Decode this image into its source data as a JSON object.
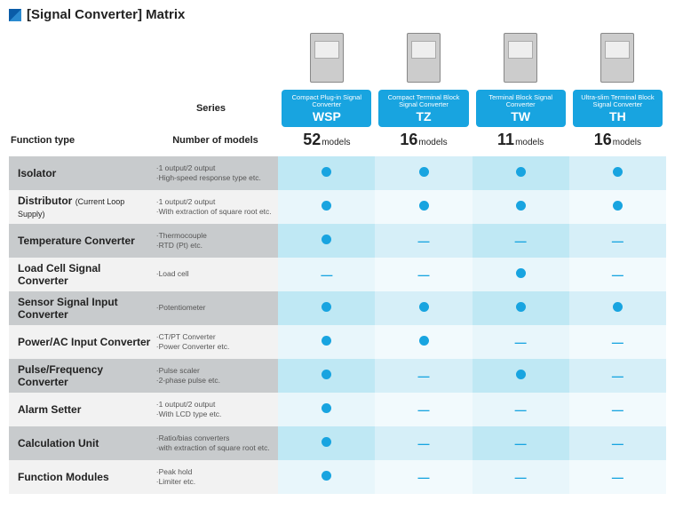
{
  "colors": {
    "accent": "#18a4e0",
    "dot": "#18a4e0",
    "dash": "#18a4e0",
    "band_even": "#c8cbcd",
    "band_odd": "#f2f2f2",
    "colA_even": "#bfe8f4",
    "colA_odd": "#e8f6fb",
    "colB_even": "#d6eff8",
    "colB_odd": "#f2fafd"
  },
  "title": "[Signal Converter] Matrix",
  "labels": {
    "series": "Series",
    "function_type": "Function type",
    "number_of_models": "Number of models",
    "models_suffix": "models"
  },
  "products": [
    {
      "caption": "Compact Plug-in Signal Converter",
      "code": "WSP",
      "count": "52"
    },
    {
      "caption": "Compact Terminal Block Signal Converter",
      "code": "TZ",
      "count": "16"
    },
    {
      "caption": "Terminal Block Signal Converter",
      "code": "TW",
      "count": "11"
    },
    {
      "caption": "Ultra-slim Terminal Block Signal Converter",
      "code": "TH",
      "count": "16"
    }
  ],
  "rows": [
    {
      "name": "Isolator",
      "sub": "",
      "desc": "·1 output/2 output\n·High-speed response type etc.",
      "cells": [
        "dot",
        "dot",
        "dot",
        "dot"
      ]
    },
    {
      "name": "Distributor",
      "sub": "(Current Loop Supply)",
      "desc": "·1 output/2 output\n·With extraction of square root etc.",
      "cells": [
        "dot",
        "dot",
        "dot",
        "dot"
      ]
    },
    {
      "name": "Temperature Converter",
      "sub": "",
      "desc": "·Thermocouple\n·RTD (Pt) etc.",
      "cells": [
        "dot",
        "dash",
        "dash",
        "dash"
      ]
    },
    {
      "name": "Load Cell Signal Converter",
      "sub": "",
      "desc": "·Load cell",
      "cells": [
        "dash",
        "dash",
        "dot",
        "dash"
      ]
    },
    {
      "name": "Sensor Signal Input Converter",
      "sub": "",
      "desc": "·Potentiometer",
      "cells": [
        "dot",
        "dot",
        "dot",
        "dot"
      ]
    },
    {
      "name": "Power/AC Input Converter",
      "sub": "",
      "desc": "·CT/PT Converter\n·Power Converter etc.",
      "cells": [
        "dot",
        "dot",
        "dash",
        "dash"
      ]
    },
    {
      "name": "Pulse/Frequency Converter",
      "sub": "",
      "desc": "·Pulse scaler\n·2-phase pulse etc.",
      "cells": [
        "dot",
        "dash",
        "dot",
        "dash"
      ]
    },
    {
      "name": "Alarm Setter",
      "sub": "",
      "desc": "·1 output/2 output\n·With LCD type etc.",
      "cells": [
        "dot",
        "dash",
        "dash",
        "dash"
      ]
    },
    {
      "name": "Calculation Unit",
      "sub": "",
      "desc": "·Ratio/bias converters\n·with extraction of square root    etc.",
      "cells": [
        "dot",
        "dash",
        "dash",
        "dash"
      ]
    },
    {
      "name": "Function Modules",
      "sub": "",
      "desc": "·Peak hold\n·Limiter etc.",
      "cells": [
        "dot",
        "dash",
        "dash",
        "dash"
      ]
    }
  ]
}
